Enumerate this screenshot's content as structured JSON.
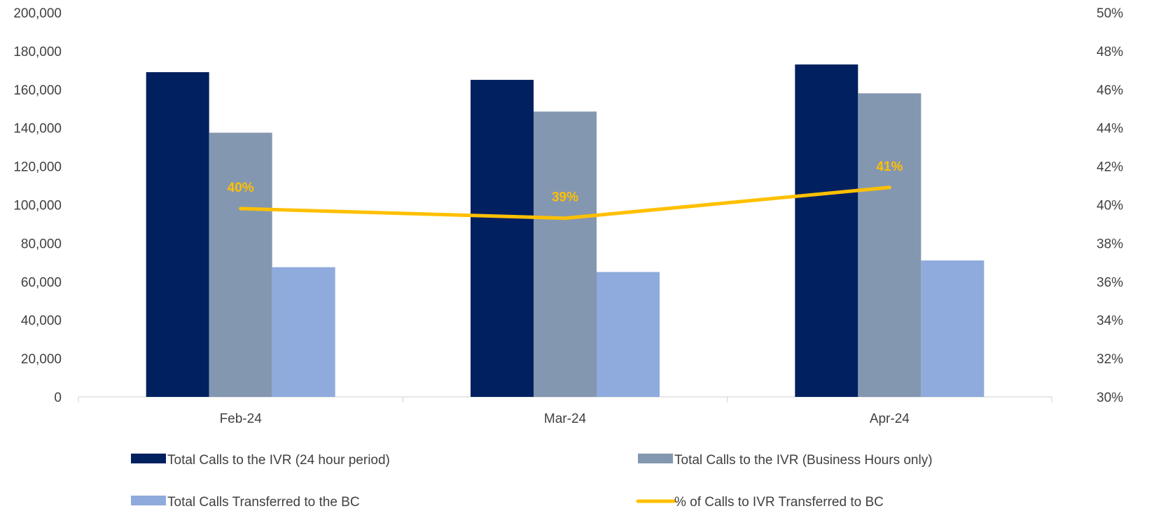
{
  "chart_data": {
    "type": "bar",
    "categories": [
      "Feb-24",
      "Mar-24",
      "Apr-24"
    ],
    "series": [
      {
        "name": "Total Calls to the IVR (24 hour period)",
        "axis": "left",
        "kind": "bar",
        "color": "#002060",
        "values": [
          169000,
          165000,
          173000
        ]
      },
      {
        "name": "Total Calls to the IVR (Business Hours only)",
        "axis": "left",
        "kind": "bar",
        "color": "#8497B0",
        "values": [
          137500,
          148500,
          158000
        ]
      },
      {
        "name": "Total Calls Transferred to the BC",
        "axis": "left",
        "kind": "bar",
        "color": "#8FAADC",
        "values": [
          67500,
          65000,
          71000
        ]
      },
      {
        "name": "% of Calls to IVR Transferred to BC",
        "axis": "right",
        "kind": "line",
        "color": "#FFC000",
        "values": [
          39.8,
          39.3,
          40.9
        ],
        "data_labels": [
          "40%",
          "39%",
          "41%"
        ]
      }
    ],
    "y_left": {
      "ylim": [
        0,
        200000
      ],
      "ticks": [
        "0",
        "20,000",
        "40,000",
        "60,000",
        "80,000",
        "100,000",
        "120,000",
        "140,000",
        "160,000",
        "180,000",
        "200,000"
      ]
    },
    "y_right": {
      "ylim": [
        30,
        50
      ],
      "ticks": [
        "30%",
        "32%",
        "34%",
        "36%",
        "38%",
        "40%",
        "42%",
        "44%",
        "46%",
        "48%",
        "50%"
      ]
    },
    "grid": false,
    "legend_position": "bottom"
  }
}
